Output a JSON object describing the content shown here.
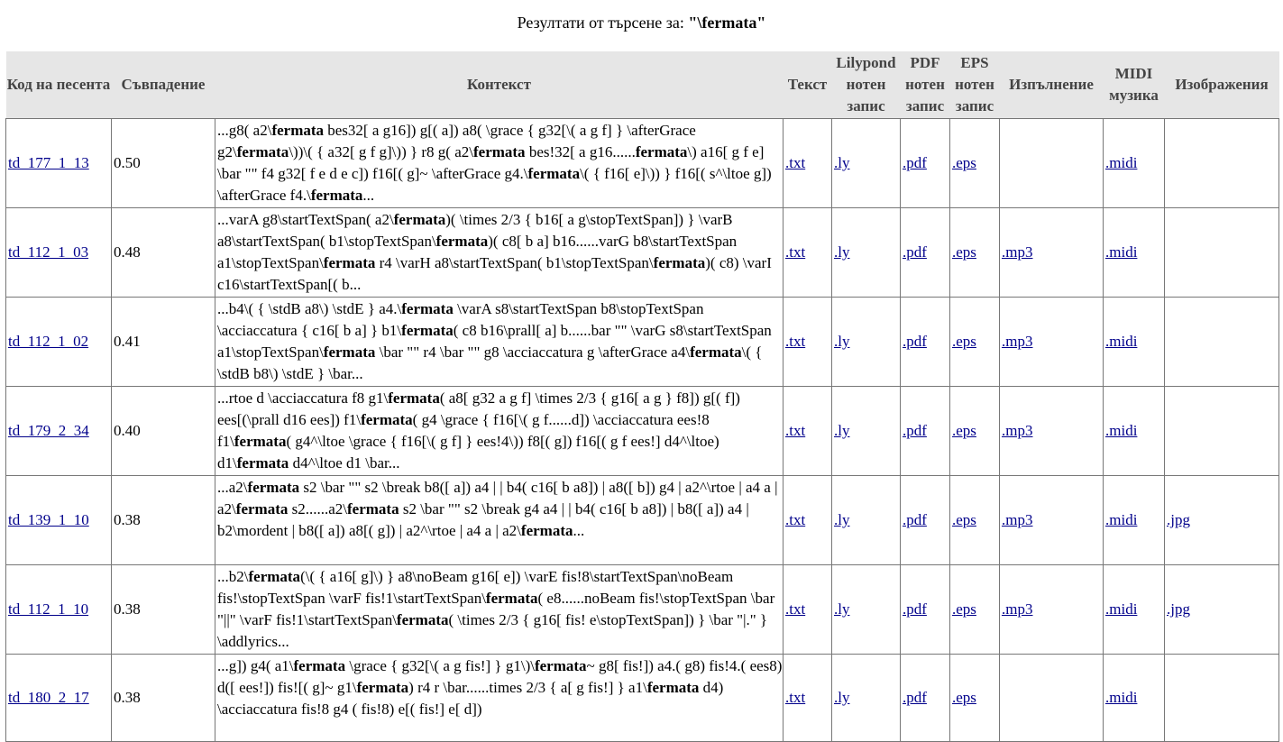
{
  "title": {
    "prefix": "Резултати от търсене за: ",
    "query": "\"\\fermata\""
  },
  "columns": {
    "code": "Код на песента",
    "match": "Съвпадение",
    "context": "Контекст",
    "text": "Текст",
    "lilypond": "Lilypond нотен запис",
    "pdf": "PDF нотен запис",
    "eps": "EPS нотен запис",
    "performance": "Изпълнение",
    "midi": "MIDI музика",
    "images": "Изображения"
  },
  "rows": [
    {
      "code": "td_177_1_13",
      "score": "0.50",
      "context": [
        {
          "t": "...g8( a2\\"
        },
        {
          "b": "fermata"
        },
        {
          "t": " bes32[ a g16]) g[( a]) a8( \\grace { g32[\\( a g f] } \\afterGrace g2\\"
        },
        {
          "b": "fermata"
        },
        {
          "t": "\\))\\( { a32[ g f g]\\)) } r8 g( a2\\"
        },
        {
          "b": "fermata"
        },
        {
          "t": " bes!32[ a g16......"
        },
        {
          "b": "fermata"
        },
        {
          "t": "\\) a16[ g f e] \\bar \"\" f4 g32[ f e d e c]) f16[( g]~ \\afterGrace g4.\\"
        },
        {
          "b": "fermata"
        },
        {
          "t": "\\( { f16[ e]\\)) } f16[( s^\\ltoe g]) \\afterGrace f4.\\"
        },
        {
          "b": "fermata"
        },
        {
          "t": "..."
        }
      ],
      "txt": ".txt",
      "ly": ".ly",
      "pdf": ".pdf",
      "eps": ".eps",
      "mp3": "",
      "midi": ".midi",
      "jpg": ""
    },
    {
      "code": "td_112_1_03",
      "score": "0.48",
      "context": [
        {
          "t": "...varA g8\\startTextSpan( a2\\"
        },
        {
          "b": "fermata"
        },
        {
          "t": ")( \\times 2/3 { b16[ a g\\stopTextSpan]) } \\varB a8\\startTextSpan( b1\\stopTextSpan\\"
        },
        {
          "b": "fermata"
        },
        {
          "t": ")( c8[ b a] b16......varG b8\\startTextSpan a1\\stopTextSpan\\"
        },
        {
          "b": "fermata"
        },
        {
          "t": " r4 \\varH a8\\startTextSpan( b1\\stopTextSpan\\"
        },
        {
          "b": "fermata"
        },
        {
          "t": ")( c8) \\varI c16\\startTextSpan[( b..."
        }
      ],
      "txt": ".txt",
      "ly": ".ly",
      "pdf": ".pdf",
      "eps": ".eps",
      "mp3": ".mp3",
      "midi": ".midi",
      "jpg": ""
    },
    {
      "code": "td_112_1_02",
      "score": "0.41",
      "context": [
        {
          "t": "...b4\\( { \\stdB a8\\) \\stdE } a4.\\"
        },
        {
          "b": "fermata"
        },
        {
          "t": " \\varA s8\\startTextSpan b8\\stopTextSpan \\acciaccatura { c16[ b a] } b1\\"
        },
        {
          "b": "fermata"
        },
        {
          "t": "( c8 b16\\prall[ a] b......bar \"\" \\varG s8\\startTextSpan a1\\stopTextSpan\\"
        },
        {
          "b": "fermata"
        },
        {
          "t": " \\bar \"\" r4 \\bar \"\" g8 \\acciaccatura g \\afterGrace a4\\"
        },
        {
          "b": "fermata"
        },
        {
          "t": "\\( { \\stdB b8\\) \\stdE } \\bar..."
        }
      ],
      "txt": ".txt",
      "ly": ".ly",
      "pdf": ".pdf",
      "eps": ".eps",
      "mp3": ".mp3",
      "midi": ".midi",
      "jpg": ""
    },
    {
      "code": "td_179_2_34",
      "score": "0.40",
      "context": [
        {
          "t": "...rtoe d \\acciaccatura f8 g1\\"
        },
        {
          "b": "fermata"
        },
        {
          "t": "( a8[ g32 a g f] \\times 2/3 { g16[ a g } f8]) g[( f]) ees[(\\prall d16 ees]) f1\\"
        },
        {
          "b": "fermata"
        },
        {
          "t": "( g4 \\grace { f16[\\( g f......d]) \\acciaccatura ees!8 f1\\"
        },
        {
          "b": "fermata"
        },
        {
          "t": "( g4^\\ltoe \\grace { f16[\\( g f] } ees!4\\)) f8[( g]) f16[( g f ees!] d4^\\ltoe) d1\\"
        },
        {
          "b": "fermata"
        },
        {
          "t": " d4^\\ltoe d1 \\bar..."
        }
      ],
      "txt": ".txt",
      "ly": ".ly",
      "pdf": ".pdf",
      "eps": ".eps",
      "mp3": ".mp3",
      "midi": ".midi",
      "jpg": ""
    },
    {
      "code": "td_139_1_10",
      "score": "0.38",
      "context": [
        {
          "t": "...a2\\"
        },
        {
          "b": "fermata"
        },
        {
          "t": " s2 \\bar \"\" s2 \\break b8([ a]) a4 | | b4( c16[ b a8]) | a8([ b]) g4 | a2^\\rtoe | a4 a | a2\\"
        },
        {
          "b": "fermata"
        },
        {
          "t": " s2......a2\\"
        },
        {
          "b": "fermata"
        },
        {
          "t": " s2 \\bar \"\" s2 \\break g4 a4 | | b4( c16[ b a8]) | b8([ a]) a4 | b2\\mordent | b8([ a]) a8[( g]) | a2^\\rtoe | a4 a | a2\\"
        },
        {
          "b": "fermata"
        },
        {
          "t": "..."
        }
      ],
      "txt": ".txt",
      "ly": ".ly",
      "pdf": ".pdf",
      "eps": ".eps",
      "mp3": ".mp3",
      "midi": ".midi",
      "jpg": ".jpg"
    },
    {
      "code": "td_112_1_10",
      "score": "0.38",
      "context": [
        {
          "t": "...b2\\"
        },
        {
          "b": "fermata"
        },
        {
          "t": "(\\( { a16[ g]\\) } a8\\noBeam g16[ e]) \\varE fis!8\\startTextSpan\\noBeam fis!\\stopTextSpan \\varF fis!1\\startTextSpan\\"
        },
        {
          "b": "fermata"
        },
        {
          "t": "( e8......noBeam fis!\\stopTextSpan \\bar \"||\" \\varF fis!1\\startTextSpan\\"
        },
        {
          "b": "fermata"
        },
        {
          "t": "( \\times 2/3 { g16[ fis! e\\stopTextSpan]) } \\bar \"|.\" } \\addlyrics..."
        }
      ],
      "txt": ".txt",
      "ly": ".ly",
      "pdf": ".pdf",
      "eps": ".eps",
      "mp3": ".mp3",
      "midi": ".midi",
      "jpg": ".jpg"
    },
    {
      "code": "td_180_2_17",
      "score": "0.38",
      "context": [
        {
          "t": "...g]) g4( a1\\"
        },
        {
          "b": "fermata"
        },
        {
          "t": " \\grace { g32[\\( a g fis!] } g1\\)\\"
        },
        {
          "b": "fermata"
        },
        {
          "t": "~ g8[ fis!]) a4.( g8) fis!4.( ees8) d([ ees!]) fis![( g]~ g1\\"
        },
        {
          "b": "fermata"
        },
        {
          "t": ") r4 r \\bar......times 2/3 { a[ g fis!] } a1\\"
        },
        {
          "b": "fermata"
        },
        {
          "t": " d4) \\acciaccatura fis!8 g4 ( fis!8) e[( fis!] e[ d])"
        }
      ],
      "txt": ".txt",
      "ly": ".ly",
      "pdf": ".pdf",
      "eps": ".eps",
      "mp3": "",
      "midi": ".midi",
      "jpg": ""
    }
  ]
}
